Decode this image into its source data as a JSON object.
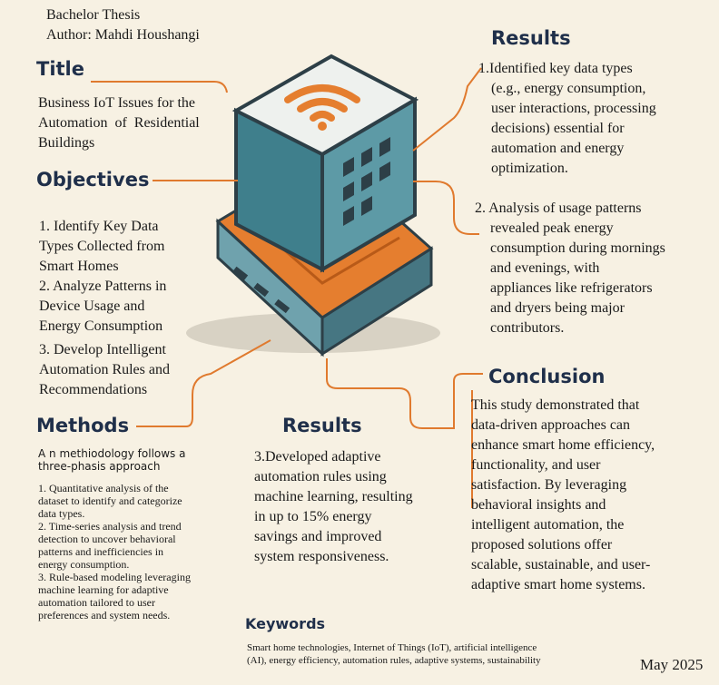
{
  "header": {
    "line1": "Bachelor Thesis",
    "line2": "Author: Mahdi Houshangi"
  },
  "title_section": {
    "heading": "Title",
    "line1": "Business IoT Issues for the",
    "line2": "Automation  of  Residential",
    "line3": "Buildings"
  },
  "objectives": {
    "heading": "Objectives",
    "items": [
      "1. Identify Key Data",
      "Types Collected from",
      "Smart Homes",
      "2. Analyze Patterns in",
      "Device Usage and",
      "Energy Consumption",
      "3. Develop Intelligent",
      "Automation Rules and",
      "Recommendations"
    ]
  },
  "methods": {
    "heading": "Methods",
    "intro1": "A n methiodology follows a",
    "intro2": "three-phasis approach",
    "items": [
      "1. Quantitative analysis of the",
      "dataset to identify and categorize",
      "data types.",
      "2. Time-series analysis and trend",
      "detection to uncover behavioral",
      "patterns and inefficiencies in",
      "energy consumption.",
      "3. Rule-based modeling leveraging",
      "machine learning for adaptive",
      "automation tailored to user",
      "preferences and system needs."
    ]
  },
  "results_top": {
    "heading": "Results",
    "item1": [
      "1.Identified key data types",
      "(e.g., energy consumption,",
      "user interactions, processing",
      "decisions) essential for",
      "automation and energy",
      "optimization."
    ],
    "item2": [
      "2. Analysis of usage patterns",
      "revealed peak energy",
      "consumption during mornings",
      "and evenings, with",
      "appliances like refrigerators",
      "and dryers being major",
      "contributors."
    ]
  },
  "results_mid": {
    "heading": "Results",
    "lines": [
      "3.Developed adaptive",
      "automation rules using",
      "machine learning, resulting",
      "in up to 15% energy",
      "savings and improved",
      "system responsiveness."
    ]
  },
  "conclusion": {
    "heading": "Conclusion",
    "lines": [
      "This study demonstrated that",
      "data-driven approaches can",
      "enhance smart home efficiency,",
      "functionality, and user",
      "satisfaction. By leveraging",
      "behavioral insights and",
      "intelligent automation, the",
      "proposed solutions offer",
      "scalable, sustainable, and user-",
      "adaptive smart home systems."
    ]
  },
  "keywords": {
    "heading": "Keywords",
    "line1": "Smart home technologies, Internet of Things (IoT), artificial intelligence",
    "line2": "(AI), energy efficiency, automation rules, adaptive systems, sustainability"
  },
  "footer": {
    "date": "May 2025"
  },
  "colors": {
    "accent": "#e07a2e",
    "heading": "#1f2f4a",
    "cube_teal": "#3f7f8c",
    "cube_top": "#eef1ee"
  }
}
